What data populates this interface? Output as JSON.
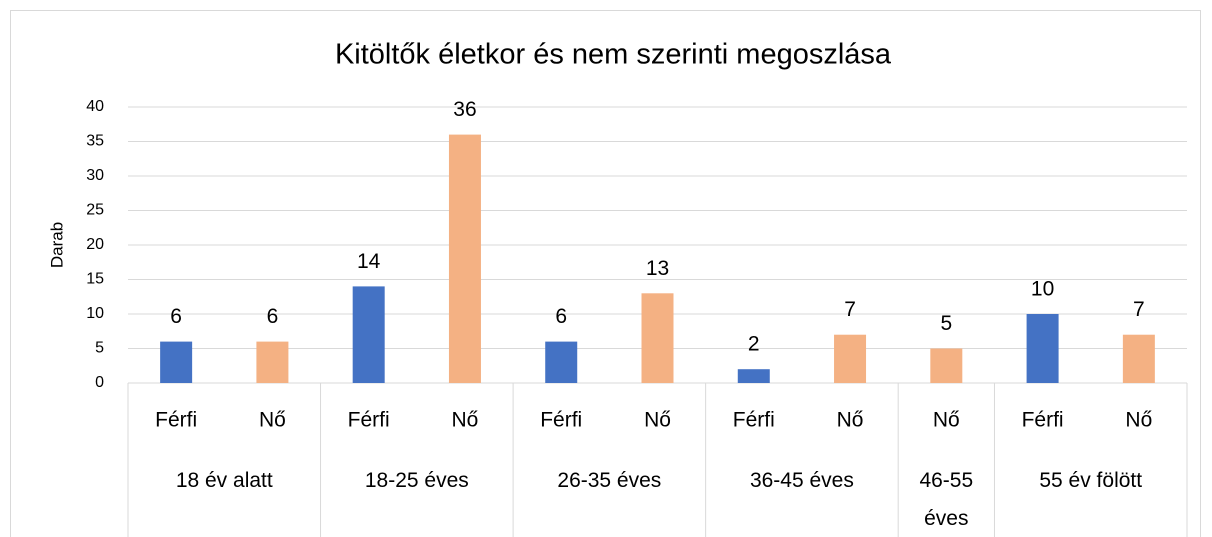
{
  "chart_data": {
    "type": "bar",
    "title": "Kitöltők életkor és nem szerinti megoszlása",
    "y_label": "Darab",
    "groups": [
      {
        "label": "18 év alatt",
        "categories": [
          "Férfi",
          "Nő"
        ],
        "values": [
          6,
          6
        ]
      },
      {
        "label": "18-25 éves",
        "categories": [
          "Férfi",
          "Nő"
        ],
        "values": [
          14,
          36
        ]
      },
      {
        "label": "26-35 éves",
        "categories": [
          "Férfi",
          "Nő"
        ],
        "values": [
          6,
          13
        ]
      },
      {
        "label": "36-45 éves",
        "categories": [
          "Férfi",
          "Nő"
        ],
        "values": [
          2,
          7
        ]
      },
      {
        "label": "46-55 éves",
        "categories": [
          "Nő"
        ],
        "values": [
          5
        ]
      },
      {
        "label": "55 év fölött",
        "categories": [
          "Férfi",
          "Nő"
        ],
        "values": [
          10,
          7
        ]
      }
    ],
    "category_colors": {
      "Férfi": "#4472c4",
      "Nő": "#f4b183"
    },
    "ylim": [
      0,
      40
    ],
    "yticks": [
      0,
      5,
      10,
      15,
      20,
      25,
      30,
      35,
      40
    ],
    "grid": true
  }
}
